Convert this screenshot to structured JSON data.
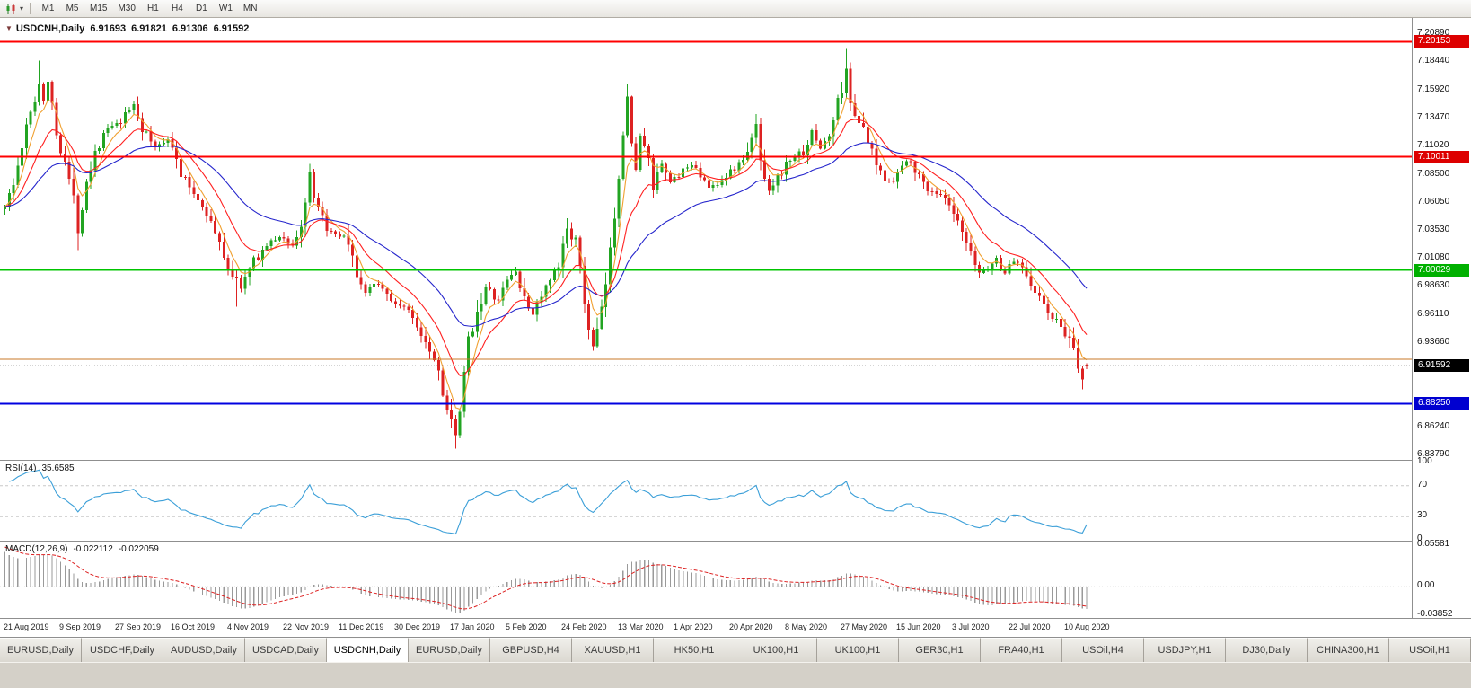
{
  "icons": {
    "one_click_glyph": "▼",
    "dropdown_caret_glyph": "▾"
  },
  "colors": {
    "up_candle": "#22a422",
    "down_candle": "#dd2222",
    "rsi_line": "#3b9fd8",
    "macd_hist": "#9a9a9a",
    "macd_signal": "#dd2222"
  },
  "toolbar": {
    "timeframes": [
      "M1",
      "M5",
      "M15",
      "M30",
      "H1",
      "H4",
      "D1",
      "W1",
      "MN"
    ]
  },
  "chart": {
    "symbol_title": "USDCNH,Daily",
    "ohlc": {
      "open": "6.91693",
      "high": "6.91821",
      "low": "6.91306",
      "close": "6.91592"
    },
    "price_axis_labels": [
      {
        "text": "7.20890",
        "price": 7.2089
      },
      {
        "text": "7.18440",
        "price": 7.1844
      },
      {
        "text": "7.15920",
        "price": 7.1592
      },
      {
        "text": "7.13470",
        "price": 7.1347
      },
      {
        "text": "7.11020",
        "price": 7.1102
      },
      {
        "text": "7.08500",
        "price": 7.085
      },
      {
        "text": "7.06050",
        "price": 7.0605
      },
      {
        "text": "7.03530",
        "price": 7.0353
      },
      {
        "text": "7.01080",
        "price": 7.0108
      },
      {
        "text": "6.98630",
        "price": 6.9863
      },
      {
        "text": "6.96110",
        "price": 6.9611
      },
      {
        "text": "6.93660",
        "price": 6.9366
      },
      {
        "text": "6.86240",
        "price": 6.8624
      },
      {
        "text": "6.83790",
        "price": 6.8379
      }
    ],
    "hlines": [
      {
        "price": 7.20153,
        "label": "7.20153",
        "color": "#ff0000",
        "badge_bg": "#dd0000",
        "width": 2
      },
      {
        "price": 7.10011,
        "label": "7.10011",
        "color": "#ff0000",
        "badge_bg": "#dd0000",
        "width": 2
      },
      {
        "price": 7.00029,
        "label": "7.00029",
        "color": "#00c400",
        "badge_bg": "#00b000",
        "width": 2
      },
      {
        "price": 6.9218,
        "label": null,
        "color": "#c87828",
        "width": 1
      },
      {
        "price": 6.8825,
        "label": "6.88250",
        "color": "#0000e0",
        "badge_bg": "#0000d0",
        "width": 2
      }
    ],
    "current_price": {
      "price": 6.91592,
      "label": "6.91592",
      "badge_bg": "#000000"
    },
    "date_axis": [
      "21 Aug 2019",
      "9 Sep 2019",
      "27 Sep 2019",
      "16 Oct 2019",
      "4 Nov 2019",
      "22 Nov 2019",
      "11 Dec 2019",
      "30 Dec 2019",
      "17 Jan 2020",
      "5 Feb 2020",
      "24 Feb 2020",
      "13 Mar 2020",
      "1 Apr 2020",
      "20 Apr 2020",
      "8 May 2020",
      "27 May 2020",
      "15 Jun 2020",
      "3 Jul 2020",
      "22 Jul 2020",
      "10 Aug 2020"
    ]
  },
  "rsi": {
    "label": "RSI(14)",
    "value": "35.6585",
    "period": 14,
    "line_color": "#3b9fd8",
    "seed": [
      0.004,
      0.0016
    ],
    "dash_levels": [
      70,
      30
    ],
    "axis_labels": [
      {
        "text": "100",
        "v": 100
      },
      {
        "text": "70",
        "v": 70
      },
      {
        "text": "30",
        "v": 30
      },
      {
        "text": "0",
        "v": 0
      }
    ]
  },
  "macd": {
    "label": "MACD(12,26,9)",
    "value_main": "-0.022112",
    "value_signal": "-0.022059",
    "fast": 12,
    "slow": 26,
    "signal_period": 9,
    "range": {
      "max": 0.05581,
      "min": -0.03852
    },
    "axis_labels": [
      {
        "text": "0.05581",
        "v": 0.05581
      },
      {
        "text": "0.00",
        "v": 0
      },
      {
        "text": "-0.03852",
        "v": -0.03852
      }
    ]
  },
  "tabs": {
    "items": [
      {
        "label": "EURUSD,Daily",
        "active": false
      },
      {
        "label": "USDCHF,Daily",
        "active": false
      },
      {
        "label": "AUDUSD,Daily",
        "active": false
      },
      {
        "label": "USDCAD,Daily",
        "active": false
      },
      {
        "label": "USDCNH,Daily",
        "active": true
      },
      {
        "label": "EURUSD,Daily",
        "active": false
      },
      {
        "label": "GBPUSD,H4",
        "active": false
      },
      {
        "label": "XAUUSD,H1",
        "active": false
      },
      {
        "label": "HK50,H1",
        "active": false
      },
      {
        "label": "UK100,H1",
        "active": false
      },
      {
        "label": "UK100,H1",
        "active": false
      },
      {
        "label": "GER30,H1",
        "active": false
      },
      {
        "label": "FRA40,H1",
        "active": false
      },
      {
        "label": "USOil,H4",
        "active": false
      },
      {
        "label": "USDJPY,H1",
        "active": false
      },
      {
        "label": "DJ30,Daily",
        "active": false
      },
      {
        "label": "CHINA300,H1",
        "active": false
      },
      {
        "label": "USOil,H1",
        "active": false
      }
    ]
  },
  "chart_data": {
    "type": "candlestick",
    "symbol": "USDCNH",
    "timeframe": "Daily",
    "bars": 253,
    "bar_spacing": 4.78,
    "price_top": 7.2225,
    "price_bottom": 6.833,
    "seed": 1337,
    "close_anchors": [
      [
        0,
        7.058
      ],
      [
        2,
        7.075
      ],
      [
        5,
        7.125
      ],
      [
        8,
        7.165
      ],
      [
        9,
        7.15
      ],
      [
        10,
        7.168
      ],
      [
        12,
        7.12
      ],
      [
        14,
        7.098
      ],
      [
        16,
        7.062
      ],
      [
        17,
        7.035
      ],
      [
        19,
        7.08
      ],
      [
        21,
        7.105
      ],
      [
        24,
        7.125
      ],
      [
        27,
        7.13
      ],
      [
        30,
        7.147
      ],
      [
        32,
        7.125
      ],
      [
        35,
        7.108
      ],
      [
        38,
        7.118
      ],
      [
        41,
        7.085
      ],
      [
        44,
        7.068
      ],
      [
        47,
        7.052
      ],
      [
        50,
        7.022
      ],
      [
        53,
        6.996
      ],
      [
        55,
        6.985
      ],
      [
        58,
        7.008
      ],
      [
        61,
        7.022
      ],
      [
        64,
        7.03
      ],
      [
        67,
        7.022
      ],
      [
        69,
        7.038
      ],
      [
        71,
        7.085
      ],
      [
        72,
        7.06
      ],
      [
        74,
        7.045
      ],
      [
        76,
        7.032
      ],
      [
        79,
        7.028
      ],
      [
        82,
        6.998
      ],
      [
        84,
        6.978
      ],
      [
        86,
        6.99
      ],
      [
        88,
        6.985
      ],
      [
        90,
        6.972
      ],
      [
        93,
        6.968
      ],
      [
        96,
        6.952
      ],
      [
        99,
        6.932
      ],
      [
        101,
        6.912
      ],
      [
        103,
        6.878
      ],
      [
        105,
        6.852
      ],
      [
        106,
        6.875
      ],
      [
        108,
        6.938
      ],
      [
        110,
        6.965
      ],
      [
        112,
        6.985
      ],
      [
        115,
        6.972
      ],
      [
        117,
        6.992
      ],
      [
        119,
        7.0
      ],
      [
        121,
        6.972
      ],
      [
        123,
        6.962
      ],
      [
        125,
        6.978
      ],
      [
        127,
        6.99
      ],
      [
        129,
        7.002
      ],
      [
        131,
        7.038
      ],
      [
        133,
        7.025
      ],
      [
        135,
        6.972
      ],
      [
        136,
        6.95
      ],
      [
        137,
        6.932
      ],
      [
        139,
        6.962
      ],
      [
        141,
        7.015
      ],
      [
        143,
        7.085
      ],
      [
        144,
        7.125
      ],
      [
        145,
        7.152
      ],
      [
        146,
        7.108
      ],
      [
        147,
        7.092
      ],
      [
        148,
        7.118
      ],
      [
        150,
        7.095
      ],
      [
        151,
        7.072
      ],
      [
        153,
        7.092
      ],
      [
        155,
        7.078
      ],
      [
        158,
        7.088
      ],
      [
        161,
        7.092
      ],
      [
        164,
        7.072
      ],
      [
        167,
        7.08
      ],
      [
        170,
        7.09
      ],
      [
        173,
        7.102
      ],
      [
        175,
        7.128
      ],
      [
        176,
        7.098
      ],
      [
        178,
        7.072
      ],
      [
        180,
        7.082
      ],
      [
        183,
        7.098
      ],
      [
        186,
        7.105
      ],
      [
        188,
        7.122
      ],
      [
        190,
        7.108
      ],
      [
        192,
        7.118
      ],
      [
        194,
        7.148
      ],
      [
        196,
        7.175
      ],
      [
        197,
        7.148
      ],
      [
        199,
        7.132
      ],
      [
        201,
        7.112
      ],
      [
        203,
        7.092
      ],
      [
        205,
        7.082
      ],
      [
        207,
        7.078
      ],
      [
        209,
        7.092
      ],
      [
        211,
        7.098
      ],
      [
        213,
        7.082
      ],
      [
        215,
        7.072
      ],
      [
        217,
        7.068
      ],
      [
        219,
        7.062
      ],
      [
        221,
        7.048
      ],
      [
        223,
        7.032
      ],
      [
        225,
        7.012
      ],
      [
        227,
        6.998
      ],
      [
        229,
        7.002
      ],
      [
        231,
        7.01
      ],
      [
        233,
        6.998
      ],
      [
        235,
        7.008
      ],
      [
        237,
        7.005
      ],
      [
        239,
        6.99
      ],
      [
        241,
        6.975
      ],
      [
        243,
        6.962
      ],
      [
        245,
        6.955
      ],
      [
        247,
        6.945
      ],
      [
        249,
        6.926
      ],
      [
        251,
        6.903
      ],
      [
        252,
        6.9159
      ]
    ],
    "wick_overrides": {
      "8": {
        "high": 7.185
      },
      "17": {
        "low": 7.018
      },
      "54": {
        "low": 6.968
      },
      "71": {
        "high": 7.094
      },
      "105": {
        "low": 6.843
      },
      "131": {
        "high": 7.046
      },
      "145": {
        "high": 7.164
      },
      "196": {
        "high": 7.196
      },
      "251": {
        "low": 6.895
      }
    },
    "last_bar": {
      "open": 6.91693,
      "high": 6.91821,
      "low": 6.91306,
      "close": 6.91592
    },
    "moving_averages": [
      {
        "period": 5,
        "color": "#f0a030"
      },
      {
        "period": 13,
        "color": "#ff2020"
      },
      {
        "period": 34,
        "color": "#2525cc"
      }
    ],
    "macd_seed": {
      "fast_offset": 0.02,
      "slow_offset": -0.032,
      "signal_init": 0.055
    }
  }
}
